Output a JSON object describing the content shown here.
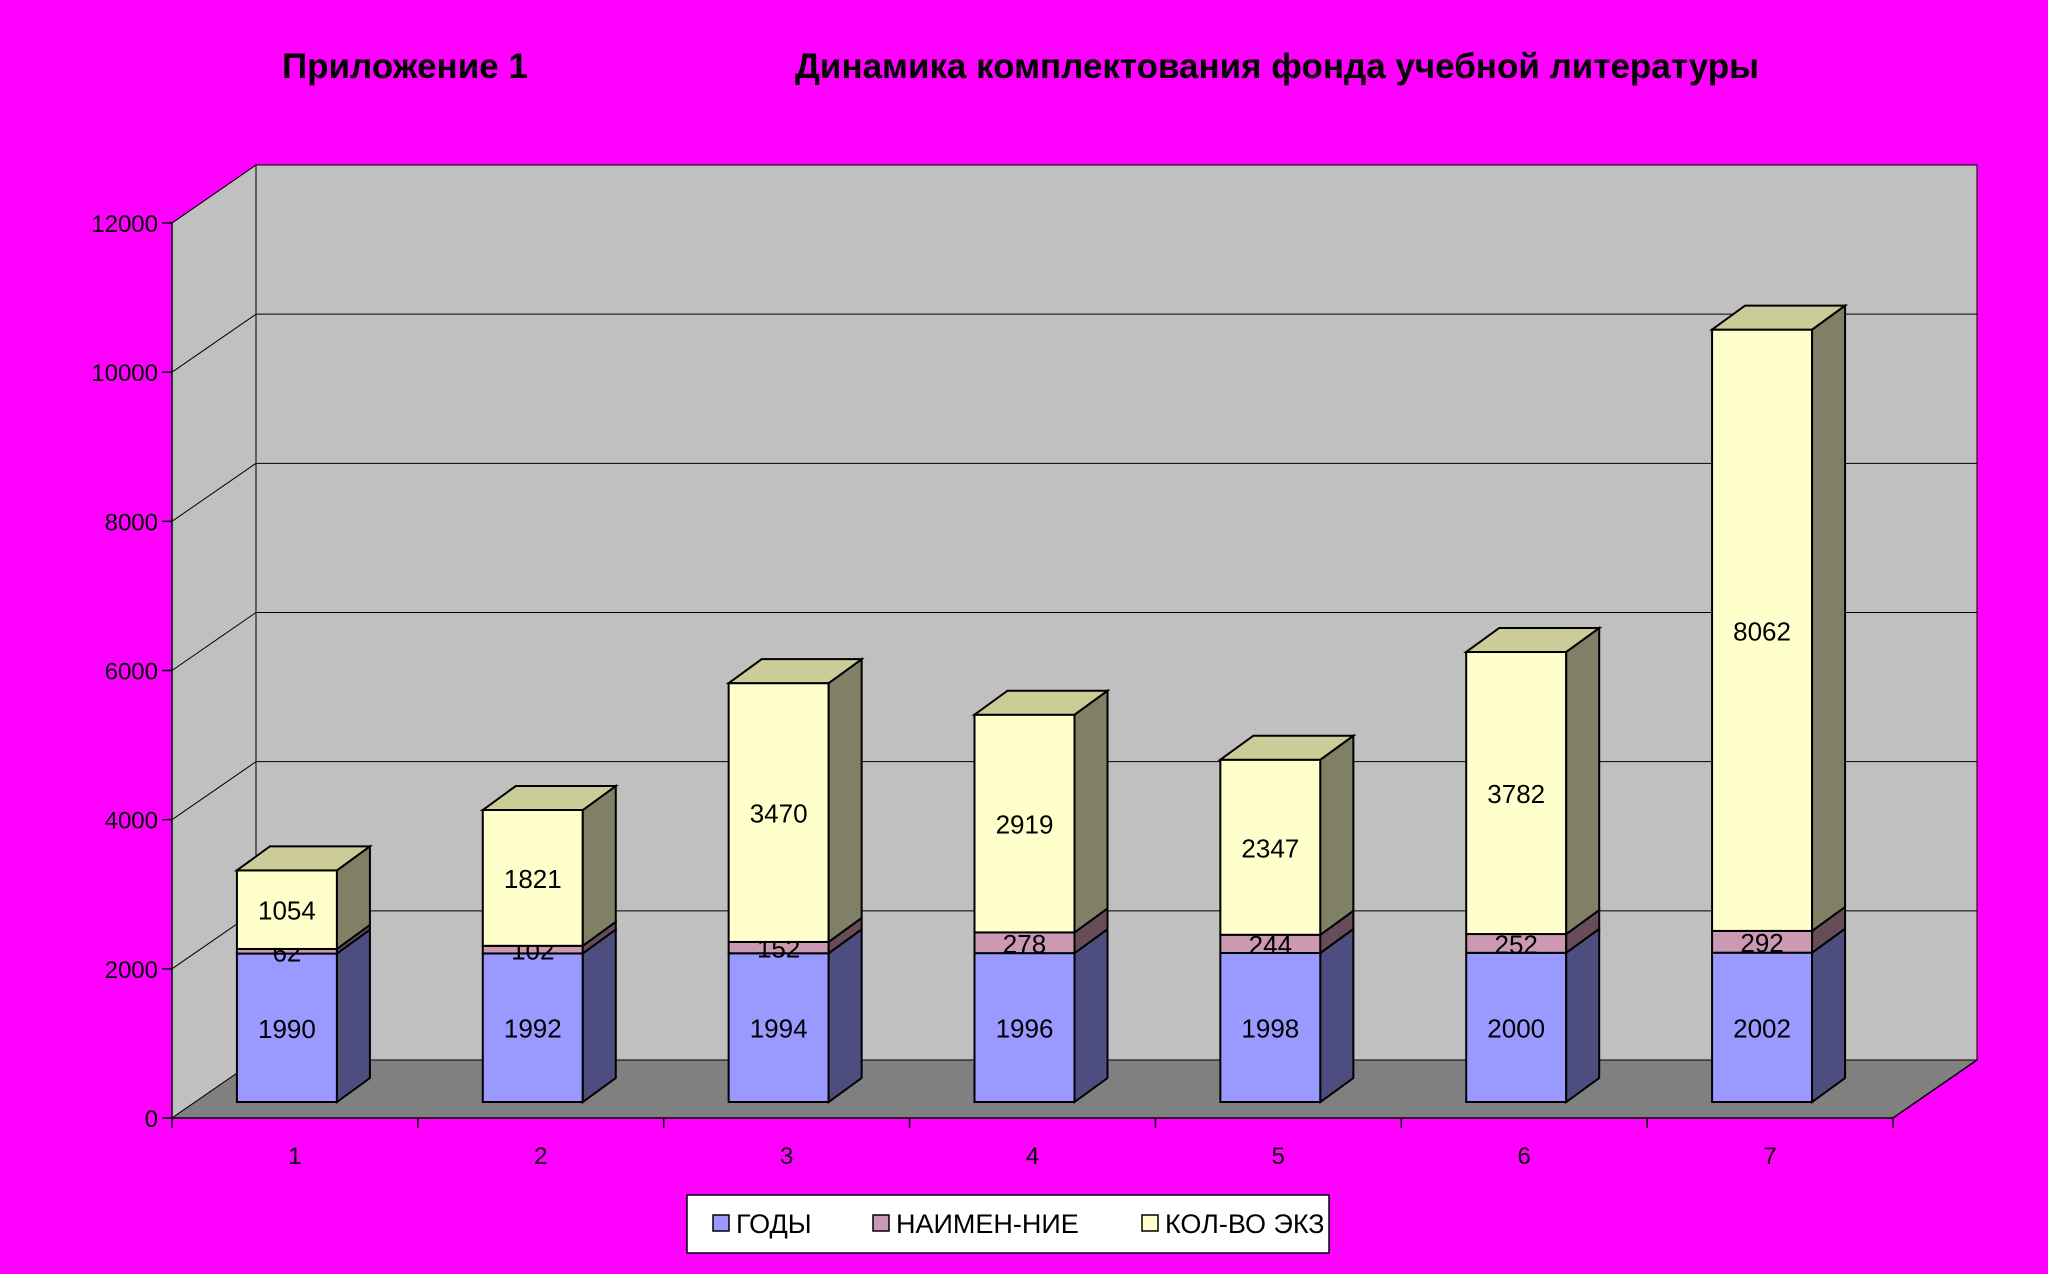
{
  "header": {
    "appendix": "Приложение 1",
    "title": "Динамика комплектования фонда учебной литературы"
  },
  "chart_data": {
    "type": "bar",
    "stacked": true,
    "three_d": true,
    "categories": [
      "1",
      "2",
      "3",
      "4",
      "5",
      "6",
      "7"
    ],
    "series": [
      {
        "name": "ГОДЫ",
        "values": [
          1990,
          1992,
          1994,
          1996,
          1998,
          2000,
          2002
        ],
        "color": "#9999FF",
        "side": "#4D4D80",
        "top": "#7070CC"
      },
      {
        "name": "НАИМЕН-НИЕ",
        "values": [
          62,
          102,
          152,
          278,
          244,
          252,
          292
        ],
        "color": "#CC99B3",
        "side": "#664D59",
        "top": "#A37A8F"
      },
      {
        "name": "КОЛ-ВО ЭКЗ",
        "values": [
          1054,
          1821,
          3470,
          2919,
          2347,
          3782,
          8062
        ],
        "color": "#FFFFCC",
        "side": "#808066",
        "top": "#CCCC99"
      }
    ],
    "ylim": [
      0,
      12000
    ],
    "yticks": [
      0,
      2000,
      4000,
      6000,
      8000,
      10000,
      12000
    ],
    "grid": true,
    "legend": "bottom",
    "colors": {
      "background": "#FF00FF",
      "wall": "#C0C0C0",
      "floor": "#808080"
    }
  }
}
